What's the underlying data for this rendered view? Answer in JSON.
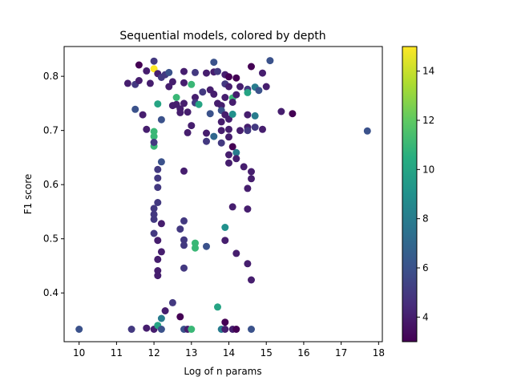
{
  "chart_data": {
    "type": "scatter",
    "title": "Sequential models, colored by depth",
    "xlabel": "Log of n params",
    "ylabel": "F1 score",
    "xlim": [
      9.6,
      18.1
    ],
    "ylim": [
      0.31,
      0.855
    ],
    "xticks": [
      10,
      11,
      12,
      13,
      14,
      15,
      16,
      17,
      18
    ],
    "yticks": [
      0.4,
      0.5,
      0.6,
      0.7,
      0.8
    ],
    "grid": false,
    "colorbar": {
      "label": "",
      "min": 3,
      "max": 15,
      "ticks": [
        4,
        6,
        8,
        10,
        12,
        14
      ],
      "colormap": "viridis"
    },
    "points": [
      [
        10.0,
        0.333,
        6
      ],
      [
        11.4,
        0.333,
        5
      ],
      [
        11.8,
        0.335,
        4
      ],
      [
        12.0,
        0.333,
        4
      ],
      [
        12.1,
        0.34,
        10
      ],
      [
        12.2,
        0.333,
        6
      ],
      [
        12.2,
        0.353,
        8
      ],
      [
        12.3,
        0.367,
        4
      ],
      [
        12.5,
        0.382,
        5
      ],
      [
        12.7,
        0.356,
        3
      ],
      [
        12.8,
        0.333,
        6
      ],
      [
        12.9,
        0.333,
        4
      ],
      [
        13.0,
        0.333,
        11
      ],
      [
        13.7,
        0.374,
        10
      ],
      [
        13.8,
        0.333,
        8
      ],
      [
        13.9,
        0.346,
        3
      ],
      [
        13.9,
        0.333,
        4
      ],
      [
        14.1,
        0.333,
        4
      ],
      [
        14.2,
        0.333,
        3
      ],
      [
        14.6,
        0.333,
        6
      ],
      [
        12.0,
        0.51,
        5
      ],
      [
        12.0,
        0.545,
        5
      ],
      [
        12.0,
        0.536,
        5
      ],
      [
        12.0,
        0.556,
        5
      ],
      [
        12.1,
        0.567,
        5
      ],
      [
        12.1,
        0.595,
        5
      ],
      [
        12.1,
        0.612,
        5
      ],
      [
        12.1,
        0.628,
        5
      ],
      [
        12.2,
        0.642,
        6
      ],
      [
        12.2,
        0.528,
        4
      ],
      [
        12.1,
        0.497,
        4
      ],
      [
        12.1,
        0.462,
        4
      ],
      [
        12.1,
        0.441,
        4
      ],
      [
        12.1,
        0.432,
        4
      ],
      [
        12.2,
        0.476,
        4
      ],
      [
        12.7,
        0.518,
        5
      ],
      [
        12.8,
        0.533,
        5
      ],
      [
        12.8,
        0.498,
        5
      ],
      [
        12.8,
        0.488,
        5
      ],
      [
        12.8,
        0.446,
        5
      ],
      [
        12.8,
        0.625,
        4
      ],
      [
        13.1,
        0.492,
        11
      ],
      [
        13.1,
        0.483,
        11
      ],
      [
        13.4,
        0.486,
        6
      ],
      [
        13.9,
        0.521,
        9
      ],
      [
        13.9,
        0.497,
        4
      ],
      [
        14.1,
        0.559,
        4
      ],
      [
        14.2,
        0.473,
        4
      ],
      [
        14.5,
        0.555,
        4
      ],
      [
        14.5,
        0.593,
        4
      ],
      [
        14.6,
        0.611,
        4
      ],
      [
        14.6,
        0.624,
        4
      ],
      [
        14.5,
        0.454,
        4
      ],
      [
        14.6,
        0.424,
        4
      ],
      [
        11.9,
        0.787,
        4
      ],
      [
        11.6,
        0.821,
        3
      ],
      [
        11.8,
        0.81,
        4
      ],
      [
        11.5,
        0.785,
        5
      ],
      [
        11.6,
        0.792,
        4
      ],
      [
        11.3,
        0.787,
        4
      ],
      [
        11.5,
        0.739,
        6
      ],
      [
        11.7,
        0.729,
        4
      ],
      [
        11.8,
        0.702,
        4
      ],
      [
        12.0,
        0.698,
        11
      ],
      [
        12.0,
        0.689,
        11
      ],
      [
        12.0,
        0.671,
        11
      ],
      [
        12.0,
        0.678,
        5
      ],
      [
        12.0,
        0.828,
        5
      ],
      [
        12.0,
        0.814,
        15
      ],
      [
        12.1,
        0.805,
        4
      ],
      [
        12.2,
        0.798,
        5
      ],
      [
        12.1,
        0.749,
        10
      ],
      [
        12.2,
        0.72,
        6
      ],
      [
        12.3,
        0.803,
        5
      ],
      [
        12.4,
        0.807,
        6
      ],
      [
        12.4,
        0.781,
        4
      ],
      [
        12.5,
        0.79,
        4
      ],
      [
        12.5,
        0.746,
        4
      ],
      [
        12.6,
        0.761,
        11
      ],
      [
        12.6,
        0.748,
        4
      ],
      [
        12.7,
        0.74,
        4
      ],
      [
        12.8,
        0.809,
        4
      ],
      [
        12.8,
        0.788,
        4
      ],
      [
        12.7,
        0.733,
        4
      ],
      [
        12.8,
        0.75,
        4
      ],
      [
        12.9,
        0.696,
        4
      ],
      [
        12.9,
        0.734,
        4
      ],
      [
        13.0,
        0.785,
        11
      ],
      [
        13.0,
        0.709,
        4
      ],
      [
        13.1,
        0.807,
        5
      ],
      [
        13.1,
        0.761,
        4
      ],
      [
        13.1,
        0.751,
        5
      ],
      [
        13.2,
        0.748,
        10
      ],
      [
        13.3,
        0.771,
        5
      ],
      [
        13.4,
        0.806,
        4
      ],
      [
        13.4,
        0.695,
        4
      ],
      [
        13.4,
        0.68,
        5
      ],
      [
        13.5,
        0.775,
        4
      ],
      [
        13.5,
        0.731,
        6
      ],
      [
        13.6,
        0.826,
        6
      ],
      [
        13.6,
        0.808,
        4
      ],
      [
        13.6,
        0.767,
        4
      ],
      [
        13.6,
        0.689,
        7
      ],
      [
        13.7,
        0.809,
        5
      ],
      [
        13.7,
        0.75,
        4
      ],
      [
        13.8,
        0.746,
        4
      ],
      [
        13.8,
        0.737,
        6
      ],
      [
        13.8,
        0.716,
        4
      ],
      [
        13.8,
        0.7,
        4
      ],
      [
        13.8,
        0.677,
        5
      ],
      [
        13.9,
        0.803,
        4
      ],
      [
        13.9,
        0.786,
        5
      ],
      [
        13.9,
        0.761,
        4
      ],
      [
        13.9,
        0.729,
        4
      ],
      [
        14.0,
        0.799,
        3
      ],
      [
        14.0,
        0.781,
        4
      ],
      [
        14.0,
        0.721,
        4
      ],
      [
        14.0,
        0.702,
        4
      ],
      [
        14.0,
        0.688,
        4
      ],
      [
        14.0,
        0.655,
        4
      ],
      [
        14.0,
        0.64,
        4
      ],
      [
        14.1,
        0.76,
        11
      ],
      [
        14.1,
        0.752,
        4
      ],
      [
        14.1,
        0.73,
        9
      ],
      [
        14.1,
        0.67,
        3
      ],
      [
        14.2,
        0.797,
        3
      ],
      [
        14.2,
        0.766,
        4
      ],
      [
        14.2,
        0.659,
        8
      ],
      [
        14.2,
        0.648,
        4
      ],
      [
        14.3,
        0.781,
        4
      ],
      [
        14.3,
        0.7,
        4
      ],
      [
        14.4,
        0.633,
        4
      ],
      [
        14.5,
        0.776,
        5
      ],
      [
        14.5,
        0.77,
        10
      ],
      [
        14.5,
        0.729,
        4
      ],
      [
        14.5,
        0.706,
        4
      ],
      [
        14.5,
        0.7,
        5
      ],
      [
        14.6,
        0.818,
        3
      ],
      [
        14.7,
        0.78,
        8
      ],
      [
        14.7,
        0.727,
        8
      ],
      [
        14.7,
        0.706,
        5
      ],
      [
        14.8,
        0.774,
        6
      ],
      [
        14.9,
        0.806,
        4
      ],
      [
        14.9,
        0.702,
        4
      ],
      [
        15.0,
        0.781,
        4
      ],
      [
        15.1,
        0.829,
        6
      ],
      [
        15.4,
        0.735,
        4
      ],
      [
        15.7,
        0.731,
        3
      ],
      [
        17.7,
        0.699,
        6
      ]
    ]
  }
}
